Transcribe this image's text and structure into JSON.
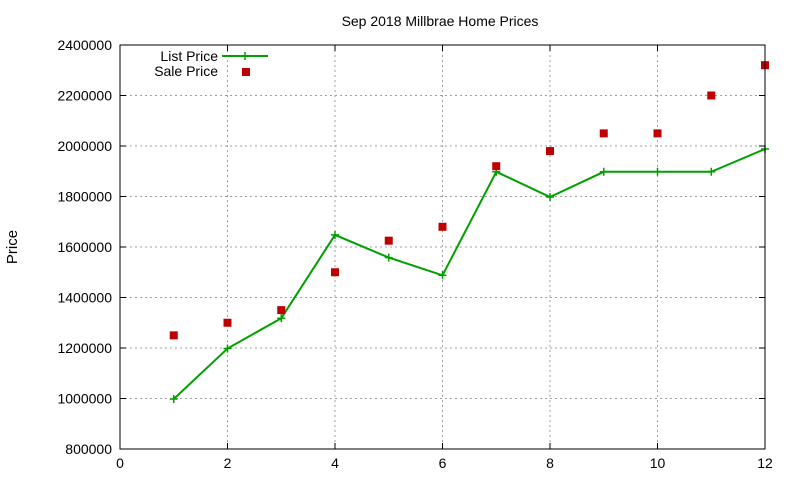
{
  "chart_data": {
    "type": "line",
    "title": "Sep 2018 Millbrae Home Prices",
    "xlabel": "",
    "ylabel": "Price",
    "xlim": [
      0,
      12
    ],
    "ylim": [
      800000,
      2400000
    ],
    "xticks": [
      0,
      2,
      4,
      6,
      8,
      10,
      12
    ],
    "yticks": [
      800000,
      1000000,
      1200000,
      1400000,
      1600000,
      1800000,
      2000000,
      2200000,
      2400000
    ],
    "grid": true,
    "legend_position": "top-left",
    "series": [
      {
        "name": "List Price",
        "style": "line-with-plus-markers",
        "color": "#00a000",
        "x": [
          1,
          2,
          3,
          4,
          5,
          6,
          7,
          8,
          9,
          10,
          11,
          12
        ],
        "y": [
          998000,
          1198000,
          1318000,
          1648000,
          1558000,
          1488000,
          1898000,
          1798000,
          1898000,
          1898000,
          1898000,
          1988000
        ]
      },
      {
        "name": "Sale Price",
        "style": "square-markers",
        "color": "#c00000",
        "x": [
          1,
          2,
          3,
          4,
          5,
          6,
          7,
          8,
          9,
          10,
          11,
          12
        ],
        "y": [
          1250000,
          1300000,
          1350000,
          1500000,
          1625000,
          1680000,
          1920000,
          1980000,
          2050000,
          2050000,
          2200000,
          2320000
        ]
      }
    ]
  }
}
